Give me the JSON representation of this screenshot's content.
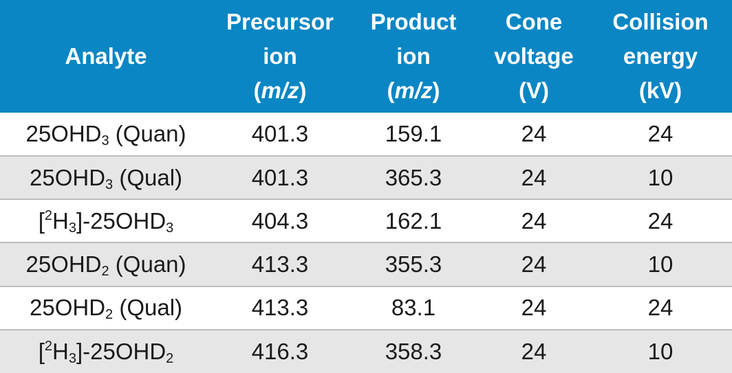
{
  "table": {
    "headers": [
      {
        "lines": [
          "Analyte"
        ]
      },
      {
        "lines": [
          "Precursor",
          "ion"
        ],
        "unit_open": "(",
        "unit_italic": "m/z",
        "unit_close": ")"
      },
      {
        "lines": [
          "Product",
          "ion"
        ],
        "unit_open": "(",
        "unit_italic": "m/z",
        "unit_close": ")"
      },
      {
        "lines": [
          "Cone",
          "voltage",
          "(V)"
        ]
      },
      {
        "lines": [
          "Collision",
          "energy",
          "(kV)"
        ]
      }
    ],
    "rows": [
      {
        "analyte": {
          "pre": "",
          "label_sup": "",
          "label_sub_h": "",
          "base": "25OHD",
          "sub": "3",
          "suffix": " (Quan)"
        },
        "precursor": "401.3",
        "product": "159.1",
        "cone": "24",
        "collision": "24"
      },
      {
        "analyte": {
          "pre": "",
          "label_sup": "",
          "label_sub_h": "",
          "base": "25OHD",
          "sub": "3",
          "suffix": " (Qual)"
        },
        "precursor": "401.3",
        "product": "365.3",
        "cone": "24",
        "collision": "10"
      },
      {
        "analyte": {
          "pre": "[",
          "label_sup": "2",
          "label_mid": "H",
          "label_sub_h": "3",
          "label_close": "]-",
          "base": "25OHD",
          "sub": "3",
          "suffix": ""
        },
        "precursor": "404.3",
        "product": "162.1",
        "cone": "24",
        "collision": "24"
      },
      {
        "analyte": {
          "pre": "",
          "label_sup": "",
          "label_sub_h": "",
          "base": "25OHD",
          "sub": "2",
          "suffix": " (Quan)"
        },
        "precursor": "413.3",
        "product": "355.3",
        "cone": "24",
        "collision": "10"
      },
      {
        "analyte": {
          "pre": "",
          "label_sup": "",
          "label_sub_h": "",
          "base": "25OHD",
          "sub": "2",
          "suffix": " (Qual)"
        },
        "precursor": "413.3",
        "product": "83.1",
        "cone": "24",
        "collision": "24"
      },
      {
        "analyte": {
          "pre": "[",
          "label_sup": "2",
          "label_mid": "H",
          "label_sub_h": "3",
          "label_close": "]-",
          "base": "25OHD",
          "sub": "2",
          "suffix": ""
        },
        "precursor": "416.3",
        "product": "358.3",
        "cone": "24",
        "collision": "10"
      }
    ]
  }
}
